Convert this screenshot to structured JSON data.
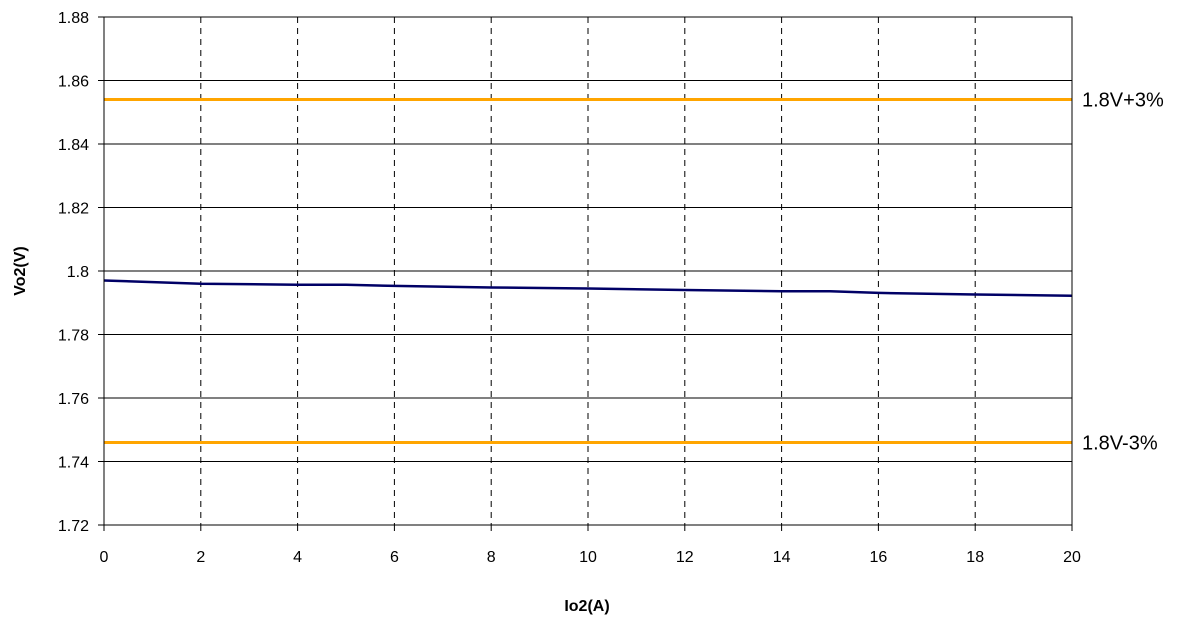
{
  "chart_data": {
    "type": "line",
    "title": "",
    "xlabel": "Io2(A)",
    "ylabel": "Vo2(V)",
    "xlim": [
      0,
      20
    ],
    "ylim": [
      1.72,
      1.88
    ],
    "x_ticks": [
      "0",
      "2",
      "4",
      "6",
      "8",
      "10",
      "12",
      "14",
      "16",
      "18",
      "20"
    ],
    "y_ticks": [
      "1.72",
      "1.74",
      "1.76",
      "1.78",
      "1.8",
      "1.82",
      "1.84",
      "1.86",
      "1.88"
    ],
    "grid": {
      "vertical": "dashed",
      "horizontal": "solid"
    },
    "series": [
      {
        "color": "#000066",
        "points": [
          {
            "x": 0,
            "y": 1.797
          },
          {
            "x": 2,
            "y": 1.796
          },
          {
            "x": 4,
            "y": 1.7957
          },
          {
            "x": 5,
            "y": 1.7957
          },
          {
            "x": 6,
            "y": 1.7953
          },
          {
            "x": 8,
            "y": 1.7948
          },
          {
            "x": 10,
            "y": 1.7945
          },
          {
            "x": 12,
            "y": 1.794
          },
          {
            "x": 14,
            "y": 1.7936
          },
          {
            "x": 15,
            "y": 1.7936
          },
          {
            "x": 16,
            "y": 1.7931
          },
          {
            "x": 18,
            "y": 1.7926
          },
          {
            "x": 20,
            "y": 1.7922
          }
        ]
      }
    ],
    "reference_lines": [
      {
        "label": "1.8V+3%",
        "y": 1.854,
        "color": "#FFA500"
      },
      {
        "label": "1.8V-3%",
        "y": 1.746,
        "color": "#FFA500"
      }
    ]
  }
}
